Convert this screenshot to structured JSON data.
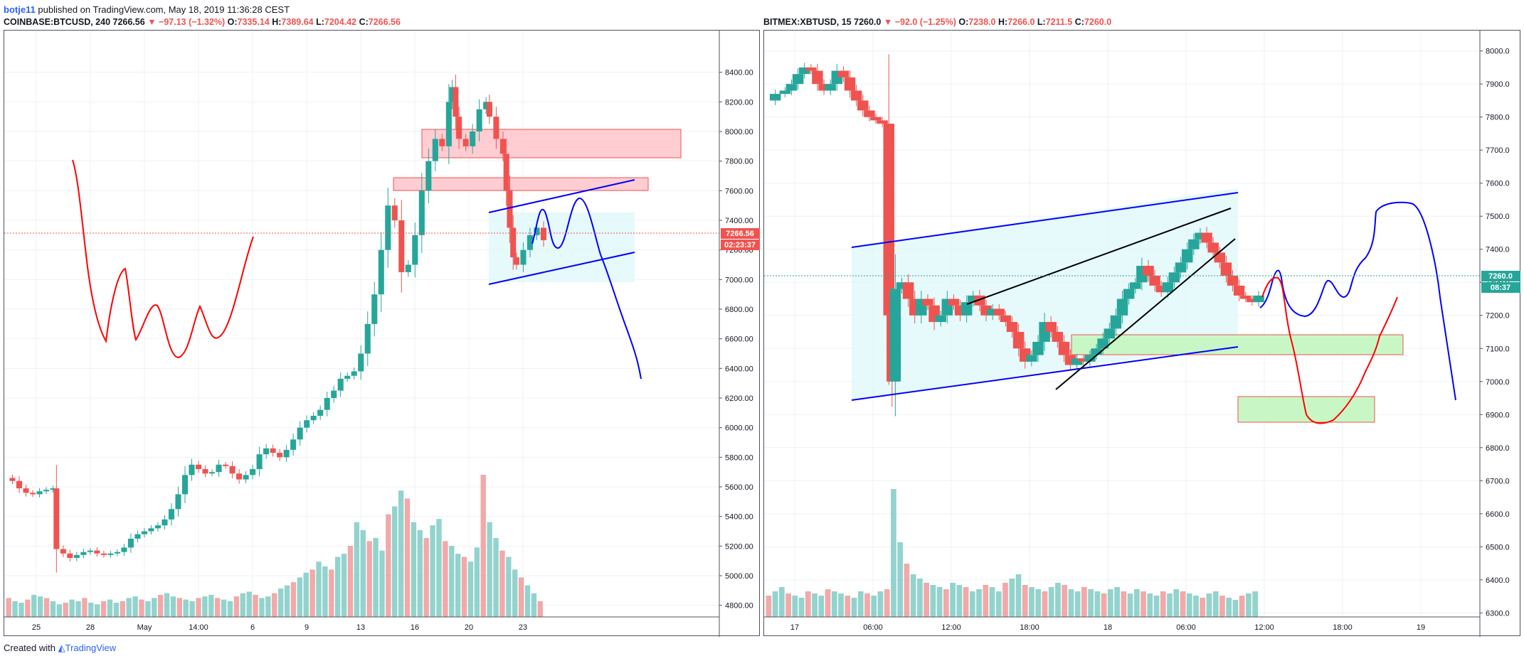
{
  "header": {
    "username": "botje11",
    "published_text": " published on TradingView.com, May 18, 2019 11:36:28 CEST"
  },
  "footer": {
    "created_with": "Created with",
    "brand": "TradingView"
  },
  "colors": {
    "up": "#26a69a",
    "down": "#ef5350",
    "drawing_blue": "#0000ff",
    "drawing_red": "#ff0000",
    "zone_red": "#ffcdd2",
    "zone_green": "#c8f7c5",
    "channel_fill": "#e0f7fa"
  },
  "chart_data": [
    {
      "type": "candlestick",
      "symbol_line": "COINBASE:BTCUSD, 240",
      "last": "7266.56",
      "change": "−97.13 (−1.32%)",
      "open": "7335.14",
      "high": "7389.64",
      "low": "7204.42",
      "close": "7266.56",
      "price_label": "7266.56",
      "countdown_label": "02:23:37",
      "y_ticks": [
        "8400.00",
        "8200.00",
        "8000.00",
        "7800.00",
        "7600.00",
        "7400.00",
        "7200.00",
        "7000.00",
        "6800.00",
        "6600.00",
        "6400.00",
        "6200.00",
        "6000.00",
        "5800.00",
        "5600.00",
        "5400.00",
        "5200.00",
        "5000.00",
        "4800.00"
      ],
      "ylim": [
        4760,
        8480
      ],
      "x_ticks": [
        "25",
        "28",
        "May",
        "14:00",
        "6",
        "9",
        "13",
        "16",
        "20",
        "23"
      ],
      "price_path": [
        [
          0,
          5660
        ],
        [
          4,
          5640
        ],
        [
          8,
          5590
        ],
        [
          12,
          5560
        ],
        [
          16,
          5550
        ],
        [
          20,
          5570
        ],
        [
          24,
          5580
        ],
        [
          28,
          5590
        ],
        [
          30,
          5180
        ],
        [
          34,
          5150
        ],
        [
          38,
          5120
        ],
        [
          42,
          5140
        ],
        [
          46,
          5160
        ],
        [
          50,
          5170
        ],
        [
          54,
          5150
        ],
        [
          58,
          5140
        ],
        [
          62,
          5150
        ],
        [
          66,
          5160
        ],
        [
          70,
          5190
        ],
        [
          74,
          5250
        ],
        [
          78,
          5280
        ],
        [
          82,
          5300
        ],
        [
          86,
          5320
        ],
        [
          90,
          5340
        ],
        [
          94,
          5380
        ],
        [
          98,
          5450
        ],
        [
          102,
          5550
        ],
        [
          106,
          5680
        ],
        [
          110,
          5750
        ],
        [
          114,
          5720
        ],
        [
          118,
          5690
        ],
        [
          122,
          5700
        ],
        [
          126,
          5750
        ],
        [
          130,
          5740
        ],
        [
          134,
          5690
        ],
        [
          138,
          5650
        ],
        [
          142,
          5680
        ],
        [
          146,
          5720
        ],
        [
          150,
          5820
        ],
        [
          154,
          5860
        ],
        [
          158,
          5830
        ],
        [
          162,
          5800
        ],
        [
          166,
          5850
        ],
        [
          170,
          5920
        ],
        [
          174,
          6000
        ],
        [
          178,
          6050
        ],
        [
          182,
          6080
        ],
        [
          186,
          6120
        ],
        [
          190,
          6200
        ],
        [
          194,
          6250
        ],
        [
          198,
          6330
        ],
        [
          202,
          6350
        ],
        [
          206,
          6380
        ],
        [
          210,
          6500
        ],
        [
          214,
          6700
        ],
        [
          218,
          6900
        ],
        [
          222,
          7200
        ],
        [
          226,
          7500
        ],
        [
          230,
          7400
        ],
        [
          234,
          7050
        ],
        [
          238,
          7100
        ],
        [
          242,
          7300
        ],
        [
          246,
          7600
        ],
        [
          250,
          7800
        ],
        [
          254,
          7950
        ],
        [
          258,
          7900
        ],
        [
          262,
          8200
        ],
        [
          264,
          8300
        ],
        [
          266,
          8100
        ],
        [
          268,
          7950
        ],
        [
          272,
          7900
        ],
        [
          276,
          8000
        ],
        [
          280,
          8150
        ],
        [
          284,
          8200
        ],
        [
          286,
          8100
        ],
        [
          290,
          7950
        ],
        [
          294,
          7850
        ],
        [
          296,
          7600
        ],
        [
          298,
          7350
        ],
        [
          300,
          7150
        ],
        [
          302,
          7100
        ],
        [
          306,
          7200
        ],
        [
          310,
          7300
        ],
        [
          314,
          7350
        ],
        [
          318,
          7266
        ]
      ],
      "volume_path": [
        12,
        10,
        9,
        11,
        14,
        13,
        12,
        10,
        8,
        9,
        11,
        10,
        12,
        9,
        8,
        10,
        11,
        9,
        10,
        12,
        13,
        11,
        10,
        12,
        14,
        15,
        13,
        12,
        11,
        10,
        12,
        13,
        14,
        12,
        11,
        10,
        13,
        15,
        16,
        14,
        12,
        13,
        15,
        18,
        20,
        22,
        25,
        28,
        30,
        35,
        32,
        30,
        38,
        40,
        45,
        60,
        55,
        48,
        50,
        42,
        65,
        70,
        80,
        75,
        60,
        55,
        50,
        58,
        62,
        48,
        45,
        40,
        38,
        35,
        44,
        90,
        60,
        50,
        42,
        38,
        30,
        25,
        20,
        15,
        10
      ]
    },
    {
      "type": "candlestick",
      "symbol_line": "BITMEX:XBTUSD, 15",
      "last": "7260.0",
      "change": "−92.0 (−1.25%)",
      "open": "7238.0",
      "high": "7266.0",
      "low": "7211.5",
      "close": "7260.0",
      "price_label": "7260.0",
      "countdown_label": "08:37",
      "y_ticks": [
        "8000.0",
        "7900.0",
        "7800.0",
        "7700.0",
        "7600.0",
        "7500.0",
        "7400.0",
        "7300.0",
        "7200.0",
        "7100.0",
        "7000.0",
        "6900.0",
        "6800.0",
        "6700.0",
        "6600.0",
        "6500.0",
        "6400.0",
        "6300.0"
      ],
      "ylim": [
        6290,
        8010
      ],
      "x_ticks": [
        "17",
        "06:00",
        "12:00",
        "18:00",
        "18",
        "06:00",
        "12:00",
        "18:00",
        "19"
      ],
      "price_path": [
        [
          0,
          7850
        ],
        [
          3,
          7870
        ],
        [
          6,
          7880
        ],
        [
          8,
          7900
        ],
        [
          10,
          7930
        ],
        [
          12,
          7950
        ],
        [
          14,
          7940
        ],
        [
          16,
          7900
        ],
        [
          18,
          7880
        ],
        [
          20,
          7900
        ],
        [
          22,
          7940
        ],
        [
          24,
          7920
        ],
        [
          26,
          7880
        ],
        [
          28,
          7850
        ],
        [
          30,
          7820
        ],
        [
          32,
          7800
        ],
        [
          34,
          7790
        ],
        [
          36,
          7780
        ],
        [
          38,
          7200
        ],
        [
          39,
          7000
        ],
        [
          40,
          7280
        ],
        [
          42,
          7300
        ],
        [
          44,
          7250
        ],
        [
          46,
          7200
        ],
        [
          48,
          7250
        ],
        [
          50,
          7230
        ],
        [
          52,
          7180
        ],
        [
          54,
          7200
        ],
        [
          56,
          7250
        ],
        [
          58,
          7230
        ],
        [
          60,
          7200
        ],
        [
          62,
          7240
        ],
        [
          64,
          7260
        ],
        [
          66,
          7230
        ],
        [
          68,
          7200
        ],
        [
          70,
          7220
        ],
        [
          72,
          7200
        ],
        [
          74,
          7180
        ],
        [
          76,
          7150
        ],
        [
          78,
          7100
        ],
        [
          80,
          7060
        ],
        [
          82,
          7080
        ],
        [
          84,
          7120
        ],
        [
          86,
          7180
        ],
        [
          88,
          7150
        ],
        [
          90,
          7120
        ],
        [
          92,
          7080
        ],
        [
          94,
          7050
        ],
        [
          96,
          7070
        ],
        [
          98,
          7060
        ],
        [
          100,
          7080
        ],
        [
          102,
          7100
        ],
        [
          104,
          7130
        ],
        [
          106,
          7160
        ],
        [
          108,
          7200
        ],
        [
          110,
          7250
        ],
        [
          112,
          7280
        ],
        [
          114,
          7300
        ],
        [
          116,
          7350
        ],
        [
          118,
          7320
        ],
        [
          120,
          7290
        ],
        [
          122,
          7270
        ],
        [
          124,
          7300
        ],
        [
          126,
          7330
        ],
        [
          128,
          7360
        ],
        [
          130,
          7400
        ],
        [
          132,
          7430
        ],
        [
          134,
          7450
        ],
        [
          136,
          7420
        ],
        [
          138,
          7390
        ],
        [
          140,
          7360
        ],
        [
          142,
          7320
        ],
        [
          144,
          7290
        ],
        [
          146,
          7260
        ],
        [
          148,
          7250
        ],
        [
          150,
          7240
        ],
        [
          152,
          7260
        ]
      ],
      "volume_path": [
        10,
        12,
        14,
        11,
        10,
        9,
        12,
        11,
        10,
        13,
        12,
        11,
        10,
        9,
        12,
        11,
        10,
        12,
        13,
        60,
        35,
        25,
        20,
        18,
        16,
        15,
        14,
        13,
        16,
        15,
        14,
        12,
        13,
        15,
        14,
        12,
        16,
        18,
        20,
        15,
        14,
        13,
        12,
        14,
        16,
        15,
        13,
        12,
        14,
        13,
        12,
        11,
        13,
        14,
        12,
        11,
        13,
        12,
        11,
        10,
        12,
        11,
        13,
        12,
        11,
        10,
        9,
        11,
        12,
        10,
        9,
        8,
        10,
        11,
        12
      ]
    }
  ]
}
